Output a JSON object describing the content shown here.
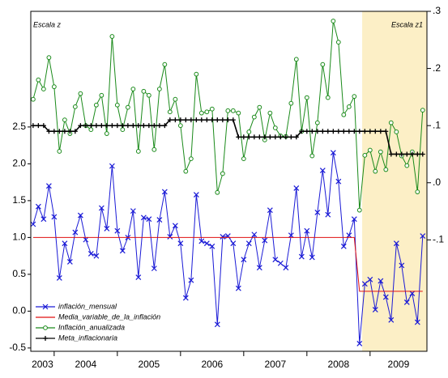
{
  "chart_data": {
    "type": "line",
    "annotations": [
      "Escala z",
      "Escala z1"
    ],
    "x": [
      2003.667,
      2003.75,
      2003.833,
      2003.917,
      2004.0,
      2004.083,
      2004.167,
      2004.25,
      2004.333,
      2004.417,
      2004.5,
      2004.583,
      2004.667,
      2004.75,
      2004.833,
      2004.917,
      2005.0,
      2005.083,
      2005.167,
      2005.25,
      2005.333,
      2005.417,
      2005.5,
      2005.583,
      2005.667,
      2005.75,
      2005.833,
      2005.917,
      2006.0,
      2006.083,
      2006.167,
      2006.25,
      2006.333,
      2006.417,
      2006.5,
      2006.583,
      2006.667,
      2006.75,
      2006.833,
      2006.917,
      2007.0,
      2007.083,
      2007.167,
      2007.25,
      2007.333,
      2007.417,
      2007.5,
      2007.583,
      2007.667,
      2007.75,
      2007.833,
      2007.917,
      2008.0,
      2008.083,
      2008.167,
      2008.25,
      2008.333,
      2008.417,
      2008.5,
      2008.583,
      2008.667,
      2008.75,
      2008.833,
      2008.917,
      2009.0,
      2009.083,
      2009.167,
      2009.25,
      2009.333,
      2009.417,
      2009.5,
      2009.583,
      2009.667,
      2009.75,
      2009.833
    ],
    "series": [
      {
        "name": "inflación_mensual",
        "color": "#1a1ad6",
        "marker": "x",
        "values": [
          1.18,
          1.42,
          1.25,
          1.7,
          1.28,
          0.45,
          0.92,
          0.67,
          1.07,
          1.3,
          0.97,
          0.78,
          0.75,
          1.4,
          1.12,
          1.97,
          1.09,
          0.82,
          1.0,
          1.36,
          0.46,
          1.27,
          1.25,
          0.58,
          1.24,
          1.62,
          1.01,
          1.16,
          0.92,
          0.18,
          0.42,
          1.58,
          0.95,
          0.92,
          0.88,
          -0.18,
          1.01,
          1.02,
          0.92,
          0.31,
          0.7,
          0.92,
          1.04,
          0.59,
          0.96,
          1.37,
          0.7,
          0.65,
          0.59,
          1.03,
          1.67,
          0.74,
          1.09,
          0.73,
          1.34,
          1.91,
          1.31,
          2.15,
          1.76,
          0.88,
          1.03,
          1.25,
          -0.44,
          0.37,
          0.43,
          0.02,
          0.41,
          0.19,
          -0.12,
          0.92,
          0.62,
          0.12,
          0.24,
          -0.15,
          1.02
        ]
      },
      {
        "name": "Media_variable_de_la_inflación",
        "color": "#e01010",
        "marker": "none",
        "values": [
          1.0,
          1.0,
          1.0,
          1.0,
          1.0,
          1.0,
          1.0,
          1.0,
          1.0,
          1.0,
          1.0,
          1.0,
          1.0,
          1.0,
          1.0,
          1.0,
          1.0,
          1.0,
          1.0,
          1.0,
          1.0,
          1.0,
          1.0,
          1.0,
          1.0,
          1.0,
          1.0,
          1.0,
          1.0,
          1.0,
          1.0,
          1.0,
          1.0,
          1.0,
          1.0,
          1.0,
          1.0,
          1.0,
          1.0,
          1.0,
          1.0,
          1.0,
          1.0,
          1.0,
          1.0,
          1.0,
          1.0,
          1.0,
          1.0,
          1.0,
          1.0,
          1.0,
          1.0,
          1.0,
          1.0,
          1.0,
          1.0,
          1.0,
          1.0,
          1.0,
          1.0,
          1.0,
          0.27,
          0.27,
          0.27,
          0.27,
          0.27,
          0.27,
          0.27,
          0.27,
          0.27,
          0.27,
          0.27,
          0.27,
          0.27
        ]
      },
      {
        "name": "Inflación_anualizada",
        "color": "#1a8a1a",
        "marker": "circle",
        "axis": "y2",
        "values": [
          0.146,
          0.18,
          0.164,
          0.219,
          0.168,
          0.055,
          0.11,
          0.086,
          0.133,
          0.156,
          0.1,
          0.093,
          0.136,
          0.153,
          0.086,
          0.256,
          0.136,
          0.093,
          0.132,
          0.164,
          0.055,
          0.16,
          0.153,
          0.058,
          0.164,
          0.207,
          0.124,
          0.146,
          0.1,
          0.02,
          0.042,
          0.19,
          0.122,
          0.124,
          0.129,
          -0.017,
          0.016,
          0.126,
          0.126,
          0.122,
          0.042,
          0.089,
          0.115,
          0.132,
          0.075,
          0.122,
          0.096,
          0.082,
          0.081,
          0.139,
          0.216,
          0.09,
          0.149,
          0.047,
          0.105,
          0.207,
          0.149,
          0.283,
          0.246,
          0.119,
          0.133,
          0.151,
          -0.048,
          0.048,
          0.057,
          0.02,
          0.054,
          0.023,
          0.105,
          0.089,
          0.047,
          0.03,
          0.054,
          -0.016,
          0.127
        ]
      },
      {
        "name": "Meta_inflacionaria",
        "color": "#000000",
        "marker": "plus",
        "axis": "y2",
        "values": [
          0.1,
          0.1,
          0.1,
          0.09,
          0.09,
          0.09,
          0.09,
          0.09,
          0.09,
          0.1,
          0.1,
          0.1,
          0.1,
          0.1,
          0.1,
          0.1,
          0.1,
          0.1,
          0.1,
          0.1,
          0.1,
          0.1,
          0.1,
          0.1,
          0.1,
          0.1,
          0.11,
          0.11,
          0.11,
          0.11,
          0.11,
          0.11,
          0.11,
          0.11,
          0.11,
          0.11,
          0.11,
          0.11,
          0.11,
          0.08,
          0.08,
          0.08,
          0.08,
          0.08,
          0.08,
          0.08,
          0.08,
          0.08,
          0.08,
          0.08,
          0.08,
          0.09,
          0.09,
          0.09,
          0.09,
          0.09,
          0.09,
          0.09,
          0.09,
          0.09,
          0.09,
          0.09,
          0.09,
          0.09,
          0.09,
          0.09,
          0.09,
          0.09,
          0.05,
          0.05,
          0.05,
          0.05,
          0.05,
          0.05,
          0.05
        ]
      }
    ],
    "xlim": [
      2003.63,
      2009.9
    ],
    "xticks": [
      2003,
      2004,
      2005,
      2006,
      2007,
      2008,
      2009
    ],
    "ylim": [
      -0.545,
      4.07
    ],
    "yticks": [
      2.5,
      {
        "value": 2,
        "label": "2.0"
      },
      1.5,
      {
        "value": 1,
        "label": "1.0"
      },
      0.5,
      {
        "value": 0,
        "label": "0.0"
      },
      -0.5
    ],
    "y2lim": [
      -0.295,
      0.3
    ],
    "y2ticks": [
      {
        "value": 0.3,
        "label": ".3"
      },
      {
        "value": 0.2,
        "label": ".2"
      },
      {
        "value": 0.1,
        "label": ".1"
      },
      {
        "value": 0,
        "label": ".0"
      },
      {
        "value": -0.1,
        "label": "-.1"
      }
    ],
    "shade_start": 2008.875,
    "shade_color": "#fcefc6",
    "legend": "lower left",
    "grid": false
  }
}
